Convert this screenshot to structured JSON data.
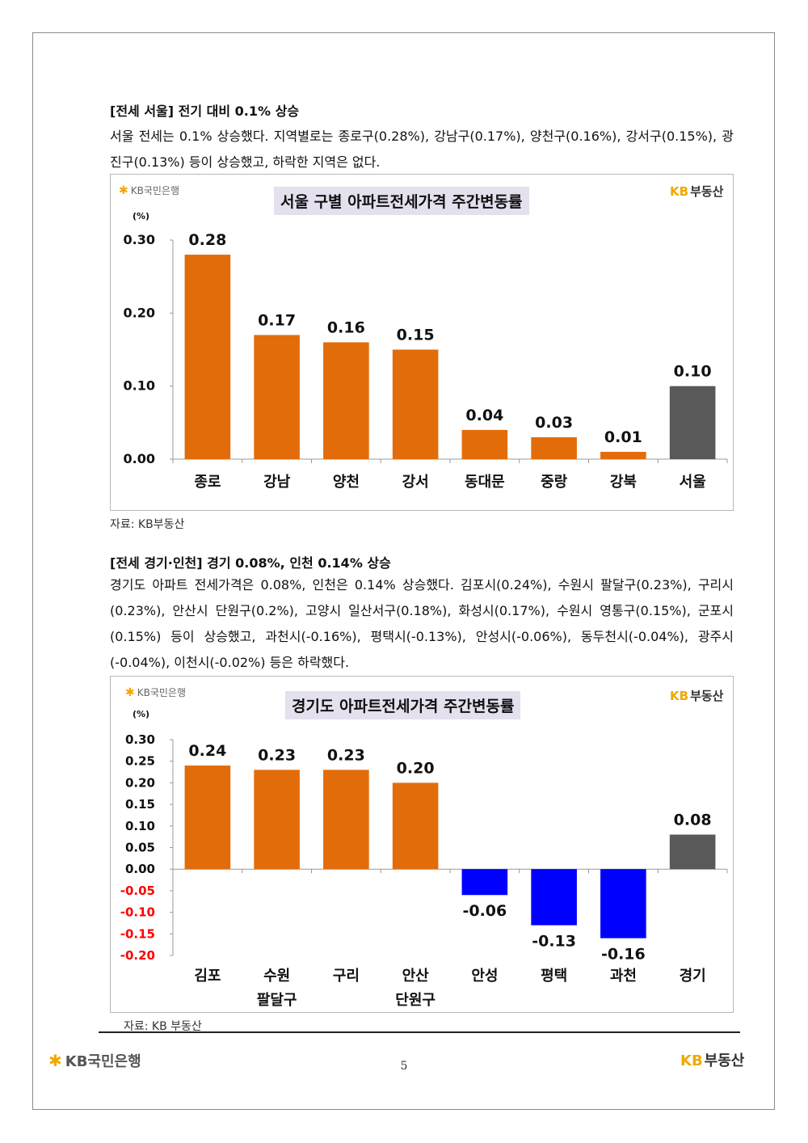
{
  "section1": {
    "heading": "[전세 서울] 전기 대비 0.1% 상승",
    "paragraph": "서울 전세는 0.1% 상승했다. 지역별로는 종로구(0.28%), 강남구(0.17%), 양천구(0.16%), 강서구(0.15%), 광진구(0.13%) 등이 상승했고, 하락한 지역은 없다.",
    "source": "자료: KB부동산"
  },
  "section2": {
    "heading": "[전세 경기·인천] 경기 0.08%, 인천 0.14% 상승",
    "paragraph": "경기도 아파트 전세가격은 0.08%, 인천은 0.14% 상승했다. 김포시(0.24%), 수원시 팔달구(0.23%), 구리시(0.23%), 안산시 단원구(0.2%), 고양시 일산서구(0.18%), 화성시(0.17%), 수원시 영통구(0.15%), 군포시(0.15%) 등이 상승했고, 과천시(-0.16%), 평택시(-0.13%), 안성시(-0.06%), 동두천시(-0.04%), 광주시(-0.04%), 이천시(-0.02%) 등은 하락했다.",
    "source": "자료: KB 부동산"
  },
  "logos": {
    "bank_small": "KB국민은행",
    "kb": "KB",
    "land": "부동산"
  },
  "footer": {
    "bank": "KB국민은행",
    "kb": "KB",
    "land": "부동산",
    "page_number": "5"
  },
  "colors": {
    "orange": "#e36c0a",
    "gray": "#595959",
    "blue": "#0000ff",
    "negative_tick": "#ff0000",
    "kb_yellow": "#f0a800",
    "title_bg": "#e4e0ed"
  },
  "chart_data": [
    {
      "type": "bar",
      "title": "서울 구별 아파트전세가격 주간변동률",
      "ylabel": "(%)",
      "categories": [
        [
          "종로"
        ],
        [
          "강남"
        ],
        [
          "양천"
        ],
        [
          "강서"
        ],
        [
          "동대문"
        ],
        [
          "중랑"
        ],
        [
          "강북"
        ],
        [
          "서울"
        ]
      ],
      "values": [
        0.28,
        0.17,
        0.16,
        0.15,
        0.04,
        0.03,
        0.01,
        0.1
      ],
      "value_labels": [
        "0.28",
        "0.17",
        "0.16",
        "0.15",
        "0.04",
        "0.03",
        "0.01",
        "0.10"
      ],
      "bar_colors": [
        "orange",
        "orange",
        "orange",
        "orange",
        "orange",
        "orange",
        "orange",
        "gray"
      ],
      "ylim": [
        0,
        0.3
      ],
      "yticks": [
        0,
        0.1,
        0.2,
        0.3
      ],
      "ytick_labels": [
        "0.00",
        "0.10",
        "0.20",
        "0.30"
      ],
      "grid": false
    },
    {
      "type": "bar",
      "title": "경기도 아파트전세가격 주간변동률",
      "ylabel": "(%)",
      "categories": [
        [
          "김포"
        ],
        [
          "수원",
          "팔달구"
        ],
        [
          "구리"
        ],
        [
          "안산",
          "단원구"
        ],
        [
          "안성"
        ],
        [
          "평택"
        ],
        [
          "과천"
        ],
        [
          "경기"
        ]
      ],
      "values": [
        0.24,
        0.23,
        0.23,
        0.2,
        -0.06,
        -0.13,
        -0.16,
        0.08
      ],
      "value_labels": [
        "0.24",
        "0.23",
        "0.23",
        "0.20",
        "-0.06",
        "-0.13",
        "-0.16",
        "0.08"
      ],
      "bar_colors": [
        "orange",
        "orange",
        "orange",
        "orange",
        "blue",
        "blue",
        "blue",
        "gray"
      ],
      "ylim": [
        -0.2,
        0.3
      ],
      "yticks": [
        0.3,
        0.25,
        0.2,
        0.15,
        0.1,
        0.05,
        0.0,
        -0.05,
        -0.1,
        -0.15,
        -0.2
      ],
      "ytick_labels": [
        "0.30",
        "0.25",
        "0.20",
        "0.15",
        "0.10",
        "0.05",
        "0.00",
        "-0.05",
        "-0.10",
        "-0.15",
        "-0.20"
      ],
      "grid": false
    }
  ]
}
